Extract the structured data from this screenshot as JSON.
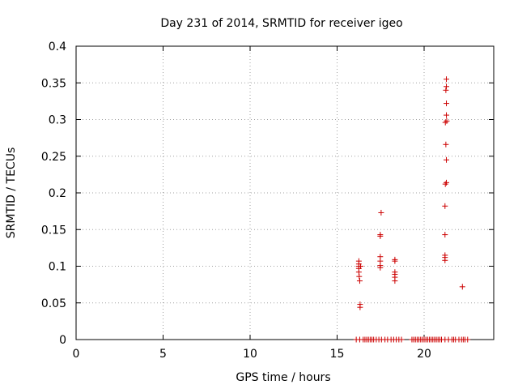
{
  "chart_data": {
    "type": "scatter",
    "title": "Day 231 of 2014, SRMTID for receiver igeo",
    "xlabel": "GPS time / hours",
    "ylabel": "SRMTID / TECUs",
    "xlim": [
      0,
      24
    ],
    "ylim": [
      0,
      0.4
    ],
    "xticks": [
      0,
      5,
      10,
      15,
      20
    ],
    "xtick_labels": [
      "0",
      "5",
      "10",
      "15",
      "20"
    ],
    "yticks": [
      0,
      0.05,
      0.1,
      0.15,
      0.2,
      0.25,
      0.3,
      0.35,
      0.4
    ],
    "ytick_labels": [
      "0",
      "0.05",
      "0.1",
      "0.15",
      "0.2",
      "0.25",
      "0.3",
      "0.35",
      "0.4"
    ],
    "grid": true,
    "marker": "plus",
    "color": "#cc0000",
    "series": [
      {
        "name": "SRMTID",
        "points": [
          [
            16.25,
            0.107
          ],
          [
            16.25,
            0.103
          ],
          [
            16.25,
            0.1
          ],
          [
            16.25,
            0.097
          ],
          [
            16.25,
            0.092
          ],
          [
            16.27,
            0.086
          ],
          [
            16.3,
            0.08
          ],
          [
            16.32,
            0.048
          ],
          [
            16.32,
            0.044
          ],
          [
            16.35,
            0.1
          ],
          [
            17.53,
            0.173
          ],
          [
            17.48,
            0.143
          ],
          [
            17.48,
            0.141
          ],
          [
            17.48,
            0.113
          ],
          [
            17.48,
            0.107
          ],
          [
            17.48,
            0.101
          ],
          [
            17.48,
            0.098
          ],
          [
            18.32,
            0.109
          ],
          [
            18.32,
            0.107
          ],
          [
            18.32,
            0.092
          ],
          [
            18.32,
            0.089
          ],
          [
            18.32,
            0.085
          ],
          [
            18.32,
            0.08
          ],
          [
            21.28,
            0.355
          ],
          [
            21.28,
            0.345
          ],
          [
            21.25,
            0.34
          ],
          [
            21.28,
            0.322
          ],
          [
            21.28,
            0.306
          ],
          [
            21.22,
            0.296
          ],
          [
            21.3,
            0.298
          ],
          [
            21.25,
            0.266
          ],
          [
            21.28,
            0.245
          ],
          [
            21.28,
            0.214
          ],
          [
            21.22,
            0.212
          ],
          [
            21.2,
            0.182
          ],
          [
            21.2,
            0.143
          ],
          [
            21.2,
            0.115
          ],
          [
            21.2,
            0.112
          ],
          [
            21.2,
            0.108
          ],
          [
            22.2,
            0.072
          ],
          [
            16.1,
            0
          ],
          [
            16.3,
            0
          ],
          [
            16.5,
            0
          ],
          [
            16.6,
            0
          ],
          [
            16.7,
            0
          ],
          [
            16.8,
            0
          ],
          [
            16.9,
            0
          ],
          [
            17.0,
            0
          ],
          [
            17.1,
            0
          ],
          [
            17.25,
            0
          ],
          [
            17.4,
            0
          ],
          [
            17.55,
            0
          ],
          [
            17.75,
            0
          ],
          [
            17.9,
            0
          ],
          [
            18.1,
            0
          ],
          [
            18.25,
            0
          ],
          [
            18.4,
            0
          ],
          [
            18.55,
            0
          ],
          [
            18.7,
            0
          ],
          [
            19.3,
            0
          ],
          [
            19.4,
            0
          ],
          [
            19.5,
            0
          ],
          [
            19.6,
            0
          ],
          [
            19.7,
            0
          ],
          [
            19.8,
            0
          ],
          [
            19.9,
            0
          ],
          [
            20.0,
            0
          ],
          [
            20.1,
            0
          ],
          [
            20.2,
            0
          ],
          [
            20.3,
            0
          ],
          [
            20.4,
            0
          ],
          [
            20.5,
            0
          ],
          [
            20.6,
            0
          ],
          [
            20.7,
            0
          ],
          [
            20.8,
            0
          ],
          [
            20.9,
            0
          ],
          [
            21.0,
            0
          ],
          [
            21.2,
            0
          ],
          [
            21.4,
            0
          ],
          [
            21.6,
            0
          ],
          [
            21.7,
            0
          ],
          [
            21.8,
            0
          ],
          [
            22.0,
            0
          ],
          [
            22.15,
            0
          ],
          [
            22.25,
            0
          ],
          [
            22.35,
            0
          ],
          [
            22.5,
            0
          ]
        ]
      }
    ]
  }
}
